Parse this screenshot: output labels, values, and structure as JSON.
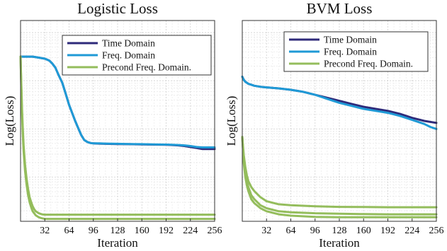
{
  "chart_data": [
    {
      "type": "line",
      "title": "Logistic Loss",
      "xlabel": "Iteration",
      "ylabel": "Log(Loss)",
      "xlim": [
        0,
        256
      ],
      "ylim": [
        0,
        1
      ],
      "xticks": [
        32,
        64,
        96,
        128,
        160,
        192,
        224,
        256
      ],
      "grid": true,
      "legend_position": "top-right",
      "series": [
        {
          "name": "Time Domain",
          "color": "#2e2a7a",
          "x": [
            0,
            8,
            16,
            24,
            32,
            38,
            42,
            46,
            50,
            55,
            60,
            64,
            68,
            72,
            76,
            80,
            84,
            88,
            92,
            96,
            104,
            112,
            128,
            144,
            160,
            176,
            192,
            200,
            208,
            216,
            224,
            232,
            240,
            248,
            256
          ],
          "y": [
            0.82,
            0.82,
            0.82,
            0.815,
            0.81,
            0.8,
            0.785,
            0.765,
            0.73,
            0.69,
            0.63,
            0.58,
            0.54,
            0.5,
            0.465,
            0.43,
            0.405,
            0.395,
            0.39,
            0.388,
            0.387,
            0.386,
            0.385,
            0.384,
            0.383,
            0.382,
            0.381,
            0.38,
            0.378,
            0.375,
            0.37,
            0.365,
            0.36,
            0.36,
            0.36
          ]
        },
        {
          "name": "Freq. Domain",
          "color": "#1f9ad6",
          "x": [
            0,
            8,
            16,
            24,
            32,
            38,
            42,
            46,
            50,
            55,
            60,
            64,
            68,
            72,
            76,
            80,
            84,
            88,
            92,
            96,
            104,
            112,
            128,
            144,
            160,
            176,
            192,
            200,
            208,
            216,
            224,
            232,
            240,
            248,
            256
          ],
          "y": [
            0.82,
            0.82,
            0.82,
            0.815,
            0.81,
            0.8,
            0.785,
            0.765,
            0.73,
            0.69,
            0.63,
            0.58,
            0.54,
            0.5,
            0.465,
            0.43,
            0.405,
            0.395,
            0.39,
            0.388,
            0.388,
            0.387,
            0.386,
            0.385,
            0.384,
            0.383,
            0.382,
            0.381,
            0.38,
            0.378,
            0.375,
            0.37,
            0.368,
            0.368,
            0.368
          ]
        },
        {
          "name": "Precond Freq. Domain.",
          "color": "#94bd5c",
          "x": [
            0,
            1,
            2,
            3,
            4,
            6,
            8,
            10,
            12,
            14,
            16,
            18,
            20,
            24,
            28,
            32,
            40,
            64,
            128,
            192,
            256
          ],
          "y": [
            0.82,
            0.68,
            0.56,
            0.46,
            0.38,
            0.28,
            0.21,
            0.16,
            0.12,
            0.095,
            0.075,
            0.06,
            0.05,
            0.04,
            0.035,
            0.033,
            0.033,
            0.033,
            0.033,
            0.033,
            0.033
          ]
        },
        {
          "name": "",
          "color": "#94bd5c",
          "x": [
            0,
            1,
            2,
            3,
            4,
            6,
            8,
            10,
            12,
            14,
            16,
            18,
            20,
            24,
            28,
            32,
            40,
            64,
            128,
            192,
            256
          ],
          "y": [
            0.82,
            0.66,
            0.53,
            0.43,
            0.35,
            0.25,
            0.18,
            0.13,
            0.095,
            0.07,
            0.05,
            0.04,
            0.03,
            0.02,
            0.015,
            0.012,
            0.012,
            0.012,
            0.012,
            0.012,
            0.012
          ]
        }
      ]
    },
    {
      "type": "line",
      "title": "BVM Loss",
      "xlabel": "Iteration",
      "ylabel": "Log(Loss)",
      "xlim": [
        0,
        256
      ],
      "ylim": [
        0,
        1
      ],
      "xticks": [
        32,
        64,
        96,
        128,
        160,
        192,
        224,
        256
      ],
      "grid": true,
      "legend_position": "top-right",
      "series": [
        {
          "name": "Time Domain",
          "color": "#2e2a7a",
          "x": [
            0,
            2,
            4,
            8,
            16,
            24,
            32,
            48,
            64,
            80,
            96,
            112,
            128,
            144,
            160,
            176,
            192,
            208,
            224,
            240,
            256
          ],
          "y": [
            0.72,
            0.705,
            0.695,
            0.685,
            0.675,
            0.67,
            0.667,
            0.662,
            0.655,
            0.645,
            0.63,
            0.615,
            0.6,
            0.585,
            0.57,
            0.56,
            0.55,
            0.535,
            0.515,
            0.5,
            0.49
          ]
        },
        {
          "name": "Freq. Domain",
          "color": "#1f9ad6",
          "x": [
            0,
            2,
            4,
            8,
            16,
            24,
            32,
            48,
            64,
            80,
            96,
            112,
            128,
            144,
            160,
            176,
            192,
            208,
            224,
            240,
            248,
            256
          ],
          "y": [
            0.72,
            0.705,
            0.695,
            0.685,
            0.675,
            0.67,
            0.667,
            0.662,
            0.655,
            0.645,
            0.63,
            0.61,
            0.59,
            0.575,
            0.56,
            0.55,
            0.54,
            0.525,
            0.505,
            0.485,
            0.47,
            0.46
          ]
        },
        {
          "name": "Precond Freq. Domain.",
          "color": "#94bd5c",
          "x": [
            0,
            2,
            4,
            6,
            8,
            12,
            16,
            24,
            32,
            48,
            64,
            96,
            128,
            160,
            192,
            224,
            256
          ],
          "y": [
            0.42,
            0.33,
            0.27,
            0.23,
            0.2,
            0.17,
            0.15,
            0.12,
            0.1,
            0.085,
            0.08,
            0.075,
            0.072,
            0.071,
            0.07,
            0.07,
            0.07
          ]
        },
        {
          "name": "",
          "color": "#94bd5c",
          "x": [
            0,
            2,
            4,
            6,
            8,
            12,
            16,
            24,
            32,
            48,
            64,
            96,
            128,
            160,
            192,
            224,
            256
          ],
          "y": [
            0.42,
            0.3,
            0.24,
            0.2,
            0.17,
            0.13,
            0.11,
            0.08,
            0.065,
            0.05,
            0.045,
            0.04,
            0.038,
            0.036,
            0.035,
            0.035,
            0.035
          ]
        },
        {
          "name": "",
          "color": "#94bd5c",
          "x": [
            0,
            2,
            4,
            6,
            8,
            12,
            16,
            24,
            32,
            48,
            64,
            96,
            128,
            160,
            192,
            224,
            256
          ],
          "y": [
            0.42,
            0.29,
            0.22,
            0.18,
            0.15,
            0.11,
            0.09,
            0.065,
            0.05,
            0.035,
            0.028,
            0.022,
            0.02,
            0.02,
            0.02,
            0.02,
            0.02
          ]
        }
      ]
    }
  ]
}
